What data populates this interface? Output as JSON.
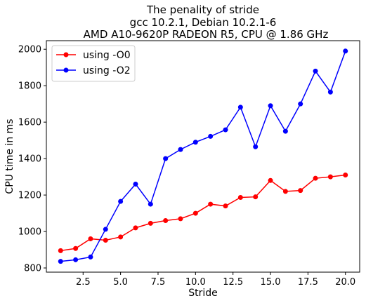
{
  "chart_data": {
    "type": "line",
    "title_lines": [
      "The penality of stride",
      "gcc 10.2.1, Debian 10.2.1-6",
      "AMD A10-9620P RADEON R5, CPU @ 1.86 GHz"
    ],
    "xlabel": "Stride",
    "ylabel": "CPU time in ms",
    "xlim": [
      0.05,
      20.95
    ],
    "ylim": [
      777,
      2047
    ],
    "xticks": [
      2.5,
      5.0,
      7.5,
      10.0,
      12.5,
      15.0,
      17.5,
      20.0
    ],
    "xtick_labels": [
      "2.5",
      "5.0",
      "7.5",
      "10.0",
      "12.5",
      "15.0",
      "17.5",
      "20.0"
    ],
    "yticks": [
      800,
      1000,
      1200,
      1400,
      1600,
      1800,
      2000
    ],
    "ytick_labels": [
      "800",
      "1000",
      "1200",
      "1400",
      "1600",
      "1800",
      "2000"
    ],
    "grid": false,
    "legend_position": "upper left",
    "x": [
      1,
      2,
      3,
      4,
      5,
      6,
      7,
      8,
      9,
      10,
      11,
      12,
      13,
      14,
      15,
      16,
      17,
      18,
      19,
      20
    ],
    "series": [
      {
        "name": "using -O0",
        "color": "#ff0000",
        "values": [
          895,
          907,
          960,
          952,
          970,
          1020,
          1045,
          1060,
          1070,
          1100,
          1150,
          1140,
          1187,
          1190,
          1280,
          1220,
          1225,
          1292,
          1300,
          1310
        ]
      },
      {
        "name": "using -O2",
        "color": "#0000ff",
        "values": [
          836,
          845,
          860,
          1012,
          1165,
          1260,
          1150,
          1400,
          1450,
          1490,
          1522,
          1558,
          1682,
          1465,
          1690,
          1550,
          1700,
          1880,
          1765,
          1990
        ]
      }
    ]
  }
}
